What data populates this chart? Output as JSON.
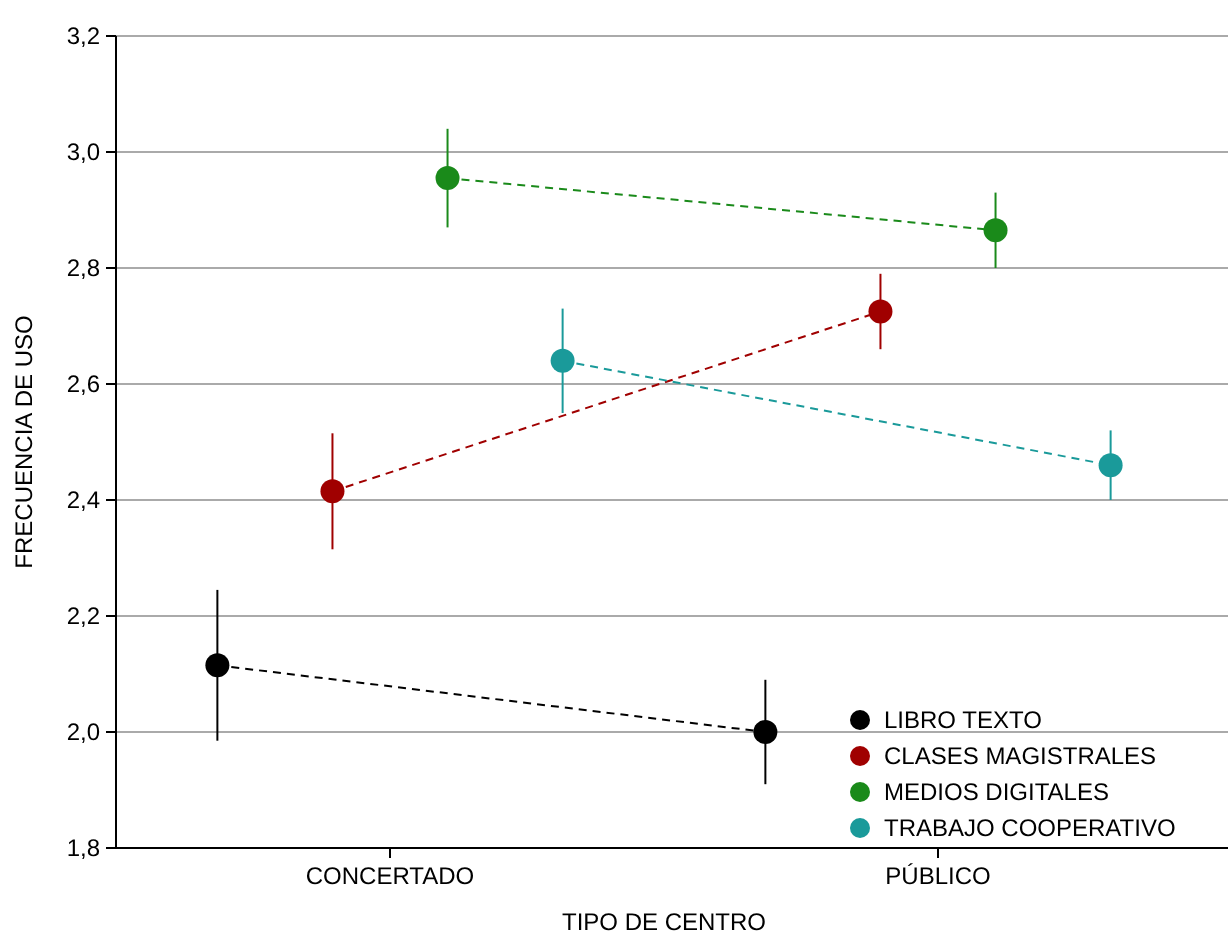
{
  "chart_data": {
    "type": "line",
    "xlabel": "TIPO DE CENTRO",
    "ylabel": "FRECUENCIA DE USO",
    "categories": [
      "CONCERTADO",
      "PÚBLICO"
    ],
    "ylim": [
      1.8,
      3.2
    ],
    "yticks": [
      {
        "value": 1.8,
        "label": "1,8"
      },
      {
        "value": 2.0,
        "label": "2,0"
      },
      {
        "value": 2.2,
        "label": "2,2"
      },
      {
        "value": 2.4,
        "label": "2,4"
      },
      {
        "value": 2.6,
        "label": "2,6"
      },
      {
        "value": 2.8,
        "label": "2,8"
      },
      {
        "value": 3.0,
        "label": "3,0"
      },
      {
        "value": 3.2,
        "label": "3,2"
      }
    ],
    "grid": "y",
    "legend": "bottom right",
    "marker": "circle",
    "line_style": "dashed",
    "series": [
      {
        "name": "LIBRO TEXTO",
        "color": "#000000",
        "values": [
          2.115,
          2.0
        ],
        "errors": [
          0.13,
          0.09
        ]
      },
      {
        "name": "CLASES MAGISTRALES",
        "color": "#a00000",
        "values": [
          2.415,
          2.725
        ],
        "errors": [
          0.1,
          0.065
        ]
      },
      {
        "name": "MEDIOS DIGITALES",
        "color": "#1a8a1a",
        "values": [
          2.955,
          2.865
        ],
        "errors": [
          0.085,
          0.065
        ]
      },
      {
        "name": "TRABAJO COOPERATIVO",
        "color": "#1a9a9a",
        "values": [
          2.64,
          2.46
        ],
        "errors": [
          0.09,
          0.06
        ]
      }
    ]
  }
}
